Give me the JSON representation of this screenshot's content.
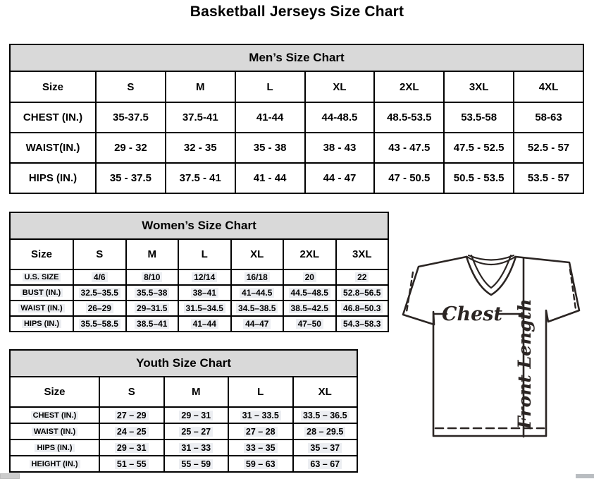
{
  "page_title": "Basketball Jerseys Size Chart",
  "tables": {
    "men": {
      "title": "Men’s Size Chart",
      "header": [
        "Size",
        "S",
        "M",
        "L",
        "XL",
        "2XL",
        "3XL",
        "4XL"
      ],
      "rows": [
        [
          "CHEST (IN.)",
          "35-37.5",
          "37.5-41",
          "41-44",
          "44-48.5",
          "48.5-53.5",
          "53.5-58",
          "58-63"
        ],
        [
          "WAIST(IN.)",
          "29 - 32",
          "32 - 35",
          "35 - 38",
          "38 - 43",
          "43 - 47.5",
          "47.5 - 52.5",
          "52.5 - 57"
        ],
        [
          "HIPS (IN.)",
          "35 - 37.5",
          "37.5 - 41",
          "41 - 44",
          "44 - 47",
          "47 - 50.5",
          "50.5 - 53.5",
          "53.5 - 57"
        ]
      ]
    },
    "women": {
      "title": "Women’s Size Chart",
      "header": [
        "Size",
        "S",
        "M",
        "L",
        "XL",
        "2XL",
        "3XL"
      ],
      "rows": [
        [
          "U.S. SIZE",
          "4/6",
          "8/10",
          "12/14",
          "16/18",
          "20",
          "22"
        ],
        [
          "BUST (IN.)",
          "32.5–35.5",
          "35.5–38",
          "38–41",
          "41–44.5",
          "44.5–48.5",
          "52.8–56.5"
        ],
        [
          "WAIST (IN.)",
          "26–29",
          "29–31.5",
          "31.5–34.5",
          "34.5–38.5",
          "38.5–42.5",
          "46.8–50.3"
        ],
        [
          "HIPS (IN.)",
          "35.5–58.5",
          "38.5–41",
          "41–44",
          "44–47",
          "47–50",
          "54.3–58.3"
        ]
      ]
    },
    "youth": {
      "title": "Youth Size Chart",
      "header": [
        "Size",
        "S",
        "M",
        "L",
        "XL"
      ],
      "rows": [
        [
          "CHEST (IN.)",
          "27 – 29",
          "29 – 31",
          "31 – 33.5",
          "33.5 – 36.5"
        ],
        [
          "WAIST (IN.)",
          "24 – 25",
          "25 – 27",
          "27 – 28",
          "28 – 29.5"
        ],
        [
          "HIPS (IN.)",
          "29 – 31",
          "31 – 33",
          "33 – 35",
          "35 – 37"
        ],
        [
          "HEIGHT (IN.)",
          "51 – 55",
          "55 – 59",
          "59 – 63",
          "63 – 67"
        ]
      ]
    }
  },
  "diagram": {
    "chest_label": "Chest",
    "front_length_label": "Front Length"
  },
  "colors": {
    "table_header_bg": "#d9d9d9",
    "table_border": "#000000",
    "diagram_stroke": "#2b2523",
    "text": "#000000"
  }
}
